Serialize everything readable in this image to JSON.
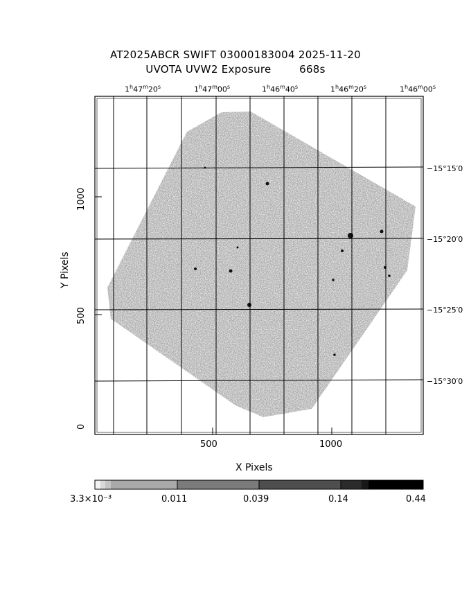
{
  "title": {
    "line1": "AT2025ABCR SWIFT 03000183004 2025-11-20",
    "line2": "UVOTA UVW2 Exposure        668s"
  },
  "axes": {
    "xlabel": "X Pixels",
    "ylabel": "Y Pixels",
    "x_ticks": [
      "500",
      "1000"
    ],
    "y_ticks": [
      "0",
      "500",
      "1000"
    ]
  },
  "ra_labels": [
    {
      "h": "1",
      "m": "47",
      "s": "20"
    },
    {
      "h": "1",
      "m": "47",
      "s": "00"
    },
    {
      "h": "1",
      "m": "46",
      "s": "40"
    },
    {
      "h": "1",
      "m": "46",
      "s": "20"
    },
    {
      "h": "1",
      "m": "46",
      "s": "00"
    }
  ],
  "dec_labels": [
    "−15°15′0",
    "−15°20′0",
    "−15°25′0",
    "−15°30′0"
  ],
  "colorbar": {
    "labels": [
      "3.3×10⁻³",
      "0.011",
      "0.039",
      "0.14",
      "0.44"
    ]
  },
  "colors": {
    "image_gray": "#8c8c8c",
    "grid": "#000000"
  }
}
